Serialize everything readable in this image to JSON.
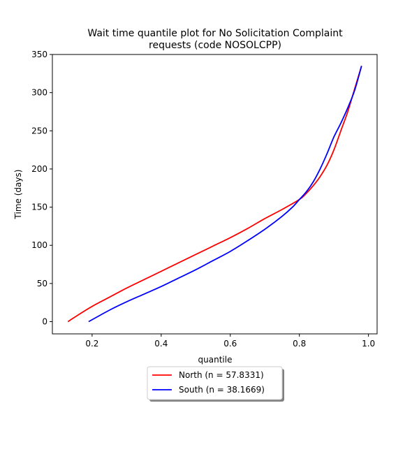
{
  "chart_data": {
    "type": "line",
    "title": "Wait time quantile plot for No Solicitation Complaint requests (code NOSOLCPP)",
    "title_lines": [
      "Wait time quantile plot for No Solicitation Complaint",
      "requests (code NOSOLCPP)"
    ],
    "xlabel": "quantile",
    "ylabel": "Time (days)",
    "xlim": [
      0.085,
      1.025
    ],
    "ylim": [
      -16,
      350
    ],
    "xticks": [
      0.2,
      0.4,
      0.6,
      0.8,
      1.0
    ],
    "xtick_labels": [
      "0.2",
      "0.4",
      "0.6",
      "0.8",
      "1.0"
    ],
    "yticks": [
      0,
      50,
      100,
      150,
      200,
      250,
      300,
      350
    ],
    "ytick_labels": [
      "0",
      "50",
      "100",
      "150",
      "200",
      "250",
      "300",
      "350"
    ],
    "grid": false,
    "legend_position": "below",
    "series": [
      {
        "name": "North (n = 57.8331)",
        "color": "#ff0000",
        "x": [
          0.13,
          0.15,
          0.2,
          0.25,
          0.3,
          0.35,
          0.4,
          0.45,
          0.5,
          0.55,
          0.6,
          0.65,
          0.7,
          0.75,
          0.8,
          0.82,
          0.84,
          0.86,
          0.88,
          0.9,
          0.92,
          0.94,
          0.96,
          0.97,
          0.98
        ],
        "y": [
          0,
          6,
          20,
          32,
          44,
          55,
          66,
          77,
          88,
          99,
          110,
          122,
          135,
          147,
          160,
          168,
          178,
          190,
          205,
          225,
          250,
          275,
          305,
          320,
          335
        ]
      },
      {
        "name": "South (n = 38.1669)",
        "color": "#0000ff",
        "x": [
          0.19,
          0.25,
          0.3,
          0.35,
          0.4,
          0.45,
          0.5,
          0.55,
          0.6,
          0.65,
          0.7,
          0.75,
          0.78,
          0.8,
          0.82,
          0.84,
          0.86,
          0.88,
          0.9,
          0.92,
          0.94,
          0.96,
          0.98
        ],
        "y": [
          0,
          15,
          26,
          36,
          46,
          57,
          68,
          80,
          92,
          106,
          121,
          138,
          150,
          160,
          170,
          183,
          200,
          220,
          242,
          260,
          280,
          303,
          335
        ]
      }
    ]
  }
}
